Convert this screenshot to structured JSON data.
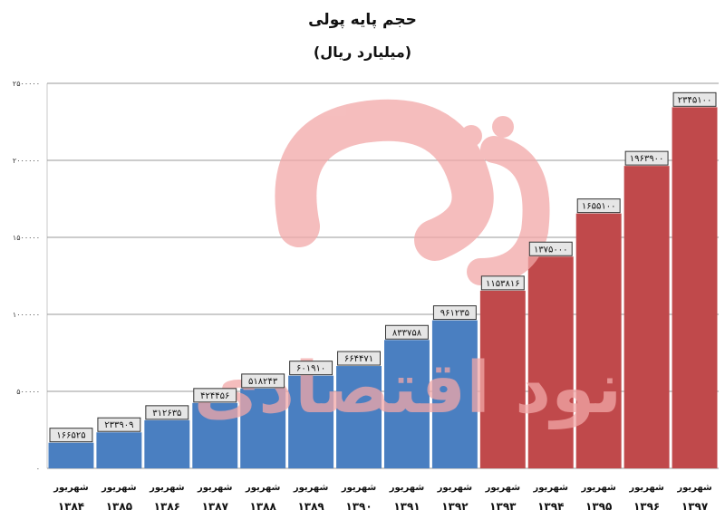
{
  "chart_data": {
    "type": "bar",
    "title": "حجم پایه پولی",
    "subtitle": "(میلیارد ریال)",
    "xlabel": "",
    "ylabel": "",
    "ylim": [
      0,
      2500000
    ],
    "yticks": [
      "۰",
      "۵۰۰۰۰۰",
      "۱۰۰۰۰۰۰",
      "۱۵۰۰۰۰۰",
      "۲۰۰۰۰۰۰",
      "۲۵۰۰۰۰۰"
    ],
    "ytick_values": [
      0,
      500000,
      1000000,
      1500000,
      2000000,
      2500000
    ],
    "grid": true,
    "categories": [
      {
        "month": "شهریور",
        "year": "۱۳۸۴"
      },
      {
        "month": "شهریور",
        "year": "۱۳۸۵"
      },
      {
        "month": "شهریور",
        "year": "۱۳۸۶"
      },
      {
        "month": "شهریور",
        "year": "۱۳۸۷"
      },
      {
        "month": "شهریور",
        "year": "۱۳۸۸"
      },
      {
        "month": "شهریور",
        "year": "۱۳۸۹"
      },
      {
        "month": "شهریور",
        "year": "۱۳۹۰"
      },
      {
        "month": "شهریور",
        "year": "۱۳۹۱"
      },
      {
        "month": "شهریور",
        "year": "۱۳۹۲"
      },
      {
        "month": "شهریور",
        "year": "۱۳۹۳"
      },
      {
        "month": "شهریور",
        "year": "۱۳۹۴"
      },
      {
        "month": "شهریور",
        "year": "۱۳۹۵"
      },
      {
        "month": "شهریور",
        "year": "۱۳۹۶"
      },
      {
        "month": "شهریور",
        "year": "۱۳۹۷"
      }
    ],
    "values": [
      166525,
      233909,
      312635,
      424456,
      518243,
      601910,
      664471,
      833758,
      961235,
      1153816,
      1375000,
      1655100,
      1963900,
      2345100
    ],
    "value_labels": [
      "۱۶۶۵۲۵",
      "۲۳۳۹۰۹",
      "۳۱۲۶۳۵",
      "۴۲۴۴۵۶",
      "۵۱۸۲۴۳",
      "۶۰۱۹۱۰",
      "۶۶۴۴۷۱",
      "۸۳۳۷۵۸",
      "۹۶۱۲۳۵",
      "۱۱۵۳۸۱۶",
      "۱۳۷۵۰۰۰",
      "۱۶۵۵۱۰۰",
      "۱۹۶۳۹۰۰",
      "۲۳۴۵۱۰۰"
    ],
    "bar_colors": [
      "#4a7fc1",
      "#4a7fc1",
      "#4a7fc1",
      "#4a7fc1",
      "#4a7fc1",
      "#4a7fc1",
      "#4a7fc1",
      "#4a7fc1",
      "#4a7fc1",
      "#c0494b",
      "#c0494b",
      "#c0494b",
      "#c0494b",
      "#c0494b"
    ]
  },
  "watermark": {
    "text": "نود اقتصادی",
    "color": "#f2a8a8"
  }
}
